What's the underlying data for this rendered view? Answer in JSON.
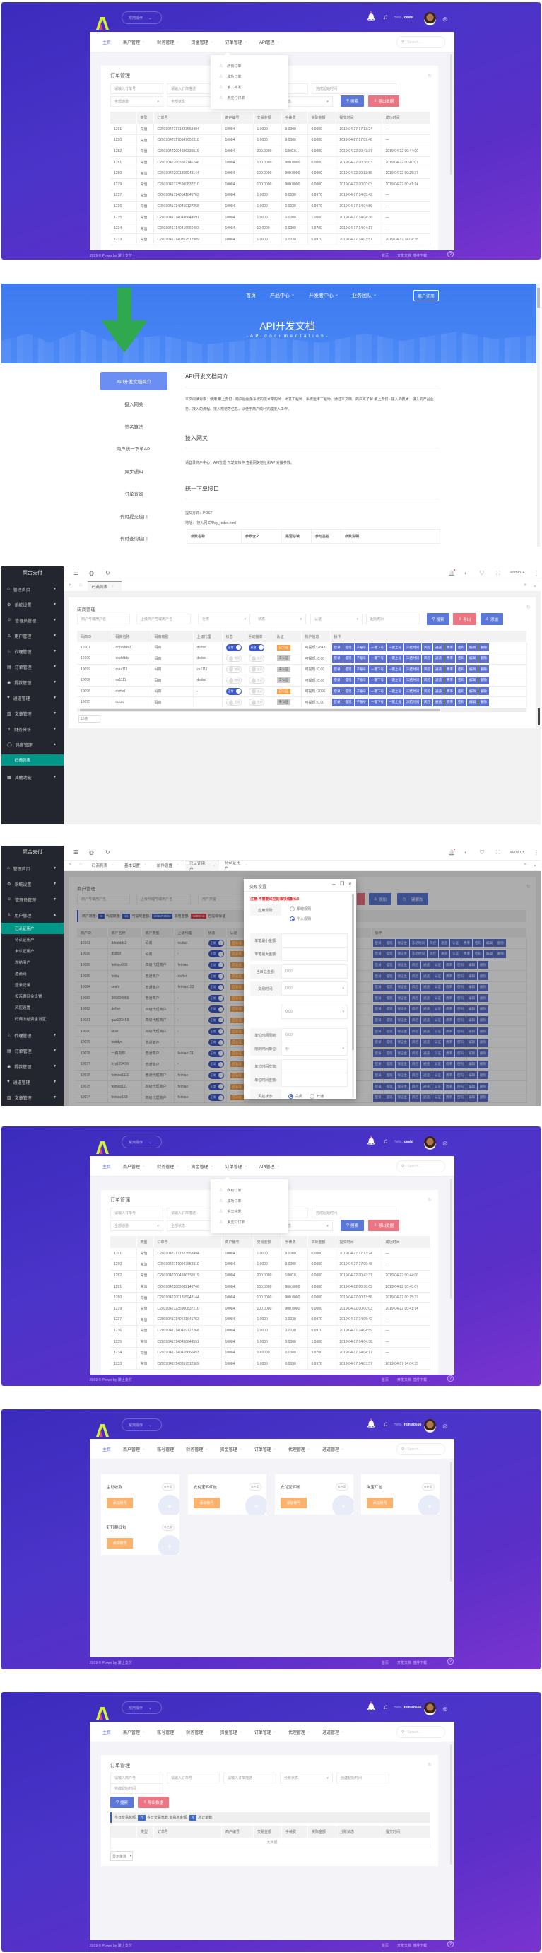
{
  "order_page": {
    "header": {
      "quick_actions": "常用操作",
      "greeting": "Hello,",
      "username": "ceshi"
    },
    "nav": [
      {
        "label": "主页",
        "active": true
      },
      {
        "label": "商户管理",
        "caret": true
      },
      {
        "label": "财务管理",
        "caret": true
      },
      {
        "label": "资金管理",
        "caret": true
      },
      {
        "label": "订单管理",
        "caret": true,
        "open": true
      },
      {
        "label": "API管理",
        "caret": true
      }
    ],
    "search_placeholder": "Search...",
    "dropdown": [
      "所有订单",
      "成功订单",
      "手工补发",
      "未支付订单"
    ],
    "card_title": "订单管理",
    "filters_row1": [
      "请输入订单号",
      "请输入订单描述",
      "",
      "",
      "完成起始时间"
    ],
    "filters_row2": [
      "全部通道",
      "全部状态",
      "",
      "状态"
    ],
    "search_button": "搜索",
    "export_button": "导出数据",
    "columns": [
      "",
      "类型",
      "订单号",
      "商户编号",
      "交易金额",
      "手续费",
      "实际金额",
      "提交时间",
      "成功时间"
    ],
    "rows": [
      [
        "1291",
        "充值",
        "C20190427171323558404",
        "10084",
        "1.0000",
        "9.0000",
        "0.0000",
        "2019-04-27 17:13:24",
        "—"
      ],
      [
        "1290",
        "充值",
        "C20190427170947652310",
        "10084",
        "1.0000",
        "9.0000",
        "0.0000",
        "2019-04-27 17:09:48",
        "—"
      ],
      [
        "1282",
        "充值",
        "C20190422004336335519",
        "10084",
        "200.0000",
        "1800.0...",
        "0.0000",
        "2019-04-22 00:43:37",
        "2019-04-22 00:44:00"
      ],
      [
        "1281",
        "充值",
        "C20190422003602146746",
        "10084",
        "100.0000",
        "900.0000",
        "0.0000",
        "2019-04-22 00:36:03",
        "2019-04-22 00:40:07"
      ],
      [
        "1280",
        "充值",
        "C20190422001355948144",
        "10084",
        "100.0000",
        "900.0000",
        "0.0000",
        "2019-04-22 00:13:56",
        "2019-04-22 00:25:37"
      ],
      [
        "1279",
        "充值",
        "C20190421235900837210",
        "10084",
        "100.0000",
        "900.0000",
        "0.0000",
        "2019-04-22 00:00:03",
        "2019-04-22 00:41:14"
      ],
      [
        "1237",
        "充值",
        "C20190417140541641763",
        "10084",
        "1.0000",
        "0.0030",
        "0.9970",
        "2019-04-17 14:05:42",
        "—"
      ],
      [
        "1236",
        "充值",
        "C20190417140459127268",
        "10084",
        "1.0000",
        "0.0030",
        "0.9970",
        "2019-04-17 14:04:59",
        "—"
      ],
      [
        "1235",
        "充值",
        "C20190417140436644591",
        "10084",
        "1.0000",
        "0.0000",
        "1.0000",
        "2019-04-17 14:04:36",
        "—"
      ],
      [
        "1234",
        "充值",
        "C20190417140416660493",
        "10084",
        "10.0000",
        "0.0300",
        "9.9700",
        "2019-04-17 14:04:17",
        "—"
      ],
      [
        "1233",
        "充值",
        "C20190417140357512909",
        "10084",
        "1.0000",
        "0.0030",
        "0.9970",
        "2019-04-17 14:03:57",
        "2019-04-17 14:04:35"
      ]
    ],
    "footer": {
      "copyright": "2019 © Power by 聚上支付",
      "links": [
        "首页",
        "开发文档",
        "插件下载"
      ]
    }
  },
  "api_docs": {
    "nav": [
      "首页",
      "产品中心",
      "开发者中心",
      "业务团队"
    ],
    "register_button": "商户注册",
    "title": "API开发文档",
    "subtitle": "- A P I   d o c u m e n t a t i o n -",
    "sidebar": [
      "API开发文档简介",
      "接入网关",
      "签名算法",
      "商户统一下单API",
      "异步通知",
      "订单查询",
      "代付提交接口",
      "代付查询接口"
    ],
    "sections": {
      "intro_title": "API开发文档简介",
      "intro_text": "本文阅读对象：使用 聚上支付 · 商户后服务系统的技术架构师、研发工程师、系统运维工程师。通过本文档，商户可了解 聚上支付 · 接入的技术、接入的产品业务、接入的流程、接入规范等信息，以便于商户顺利完成接入工作。",
      "gateway_title": "接入网关",
      "gateway_text": "请登录商户中心，API管理 开发文档中 查看网关地址和API对接参数。",
      "order_title": "统一下单接口",
      "method": "提交方式：POST",
      "address": "地址： 接入网关/Pay_Index.html",
      "param_columns": [
        "参数名称",
        "参数含义",
        "是否必填",
        "参与签名",
        "参数说明"
      ]
    }
  },
  "admin": {
    "brand": "聚合支付",
    "user": "admin",
    "menu": [
      "管理首页",
      "系统设置",
      "管理员管理",
      "用户管理",
      "代理管理",
      "订单管理",
      "提款管理",
      "通道管理",
      "文章管理",
      "财务分析",
      "码商管理",
      "其他功能"
    ],
    "mch_submenu": [
      "码商列表"
    ],
    "user_submenu": [
      "已认证用户",
      "待认证用户",
      "未认证用户",
      "冻结用户",
      "邀请码",
      "登录记录",
      "投诉保证金设置",
      "风控设置",
      "码商冻结资金设置"
    ]
  },
  "merchant_list": {
    "tabs": [
      "码商列表"
    ],
    "card_title": "码商管理",
    "filters": [
      "商户号或用户名",
      "上级商户号或用户名",
      "分类",
      "状态",
      "认证",
      "起始时间"
    ],
    "buttons": {
      "search": "搜索",
      "export": "导出",
      "add": "添加"
    },
    "columns": [
      "码商ID",
      "码商名称",
      "码商级别",
      "上级代理",
      "状态",
      "手动接单",
      "认证",
      "账户信息",
      "操作"
    ],
    "actions": [
      "登录",
      "提现",
      "子账号",
      "一键下号",
      "一键上号",
      "冻结时间",
      "风控",
      "通道",
      "费率",
      "密码",
      "编辑",
      "删除"
    ],
    "rows": [
      {
        "id": "10101",
        "name": "dddddds2",
        "level": "码商",
        "parent": "dsdsd",
        "status": "正常",
        "status_on": true,
        "manual": "开启",
        "manual_on": true,
        "cert": "已认证",
        "verified": true,
        "account": "可提现: 2843"
      },
      {
        "id": "10100",
        "name": "dddddds",
        "level": "码商",
        "parent": "dsdsd",
        "status": "禁用",
        "status_on": false,
        "manual": "关闭",
        "manual_on": false,
        "cert": "未认证",
        "verified": false,
        "account": "可提现: 0.00"
      },
      {
        "id": "10099",
        "name": "mas111",
        "level": "码商",
        "parent": "cs1111",
        "status": "禁用",
        "status_on": false,
        "manual": "关闭",
        "manual_on": false,
        "cert": "未认证",
        "verified": false,
        "account": "可提现: 0.00"
      },
      {
        "id": "10098",
        "name": "cs1111",
        "level": "码商",
        "parent": "dsdsd",
        "status": "禁用",
        "status_on": false,
        "manual": "关闭",
        "manual_on": false,
        "cert": "未认证",
        "verified": false,
        "account": "可提现: 0.00"
      },
      {
        "id": "10096",
        "name": "dsdsd",
        "level": "码商",
        "parent": "-",
        "status": "正常",
        "status_on": true,
        "manual": "关闭",
        "manual_on": false,
        "cert": "已认证",
        "verified": true,
        "account": "可提现: 2096"
      },
      {
        "id": "10095",
        "name": "ccccc",
        "level": "码商",
        "parent": "",
        "status": "禁用",
        "status_on": false,
        "manual": "关闭",
        "manual_on": false,
        "cert": "未认证",
        "verified": false,
        "account": "可提现: 0.00"
      }
    ],
    "page_size": "15条"
  },
  "user_list": {
    "tabs": [
      "码商列表",
      "基本设置",
      "邮件设置",
      "已认证用户",
      "待认证用户"
    ],
    "active_tab": 3,
    "card_title": "商户管理",
    "filters": [
      "商户号或用户名",
      "上级代理号或用户名",
      "用户类型"
    ],
    "buttons": {
      "add": "添加",
      "unfreeze": "一键解冻"
    },
    "stats": [
      {
        "label": "商户数量:",
        "value": "8",
        "color": "#3f5fc9"
      },
      {
        "label": "代理数量:",
        "value": "14",
        "color": "#3f5fc9"
      },
      {
        "label": "可提现金额:",
        "value": "10157.0004",
        "color": "#3f5fc9"
      },
      {
        "label": "冻结金额:",
        "value": "13997.3",
        "color": "#e0424f"
      },
      {
        "label": "已提现保证",
        "value": null
      }
    ],
    "columns": [
      "商户ID",
      "商户名称",
      "商户类型",
      "上级代理",
      "状态",
      "认证",
      "",
      "操作"
    ],
    "status": "正常",
    "cert": "已认证",
    "actions_full": [
      "登录",
      "提现",
      "保证金",
      "冻结时间",
      "风控",
      "通道",
      "认证",
      "费率",
      "密码",
      "编辑",
      "删除"
    ],
    "actions_short": [
      "登录",
      "提现",
      "保证金",
      "风控",
      "通道",
      "认证",
      "费率",
      "密码",
      "编辑",
      "删除"
    ],
    "rows": [
      [
        "10101",
        "dddddds2",
        "码商",
        "dsdsd"
      ],
      [
        "10096",
        "dsdsd",
        "码商",
        "-"
      ],
      [
        "10086",
        "feiniao666",
        "四级代理商户",
        "feiniao"
      ],
      [
        "10085",
        "feidu",
        "普通商户",
        "defter"
      ],
      [
        "10084",
        "ceshi",
        "普通商户",
        "feiniao123"
      ],
      [
        "10083",
        "309600055",
        "普通商户",
        "-"
      ],
      [
        "10082",
        "defter",
        "四级代理商户",
        "-"
      ],
      [
        "10081",
        "qaz123459",
        "四级代理商户",
        "-"
      ],
      [
        "10080",
        "skxx",
        "四级代理商户",
        "-"
      ],
      [
        "10079",
        "testdyc",
        "普通商户",
        "-"
      ],
      [
        "10078",
        "一路向你",
        "普通商户",
        "feiniao111"
      ],
      [
        "10077",
        "hyy123456",
        "普通商户",
        "-"
      ],
      [
        "10076",
        "feiniao1111",
        "普通代理商户",
        "feiniao"
      ],
      [
        "10075",
        "feiniao111",
        "四级代理商户",
        "feiniao"
      ],
      [
        "10074",
        "feiniao123",
        "四级代理商户",
        "feiniao"
      ]
    ],
    "modal": {
      "title": "交易设置",
      "notice": "注意:不需要风控的事项请默认0",
      "rule_label": "应用规则:",
      "rule_options": [
        "系统规则",
        "个人规则"
      ],
      "rule_selected": 1,
      "fields": [
        {
          "label": "单笔最小金额:",
          "value": ""
        },
        {
          "label": "单笔最大金额:",
          "value": ""
        },
        {
          "label": "当日总金额:",
          "value": "0.00"
        },
        {
          "label": "交易时间:",
          "value": "0.00",
          "select": true
        },
        {
          "label": "",
          "value": "0.00",
          "select": true
        },
        {
          "label": "单位时间限制:",
          "value": "0.00"
        },
        {
          "label": "限制时间单位:",
          "value": "秒",
          "select": true
        },
        {
          "label": "单位时间次数:",
          "value": ""
        },
        {
          "label": "单位时间金额:",
          "value": ""
        }
      ],
      "risk_label": "风控状态:",
      "risk_options": [
        "关闭",
        "开通"
      ],
      "risk_selected": 0
    }
  },
  "merchant_home": {
    "header": {
      "quick_actions": "常用操作",
      "greeting": "Hello,",
      "username": "feiniao666"
    },
    "nav": [
      {
        "label": "主页",
        "active": true
      },
      {
        "label": "商户管理",
        "caret": true
      },
      {
        "label": "账号管理"
      },
      {
        "label": "财务管理",
        "caret": true
      },
      {
        "label": "资金管理",
        "caret": true
      },
      {
        "label": "订单管理",
        "caret": true
      },
      {
        "label": "代理管理",
        "caret": true
      },
      {
        "label": "通道管理",
        "caret": true
      }
    ],
    "search_placeholder": "Search...",
    "channels": [
      {
        "title": "主动收款",
        "tag": "启用",
        "button": "添加账号"
      },
      {
        "title": "支付宝转红包",
        "tag": "启用",
        "button": "添加账号"
      },
      {
        "title": "支付宝转账",
        "tag": "启用",
        "button": "添加账号"
      },
      {
        "title": "淘宝红包",
        "tag": "启用",
        "button": "添加账号"
      },
      {
        "title": "钉钉群红包",
        "tag": "启用",
        "button": "添加账号"
      }
    ],
    "footer": {
      "copyright": "2019 © Power by 聚上支付",
      "links": [
        "首页",
        "开发文档",
        "插件下载"
      ]
    }
  },
  "merchant_orders": {
    "header": {
      "quick_actions": "常用操作",
      "greeting": "Hello,",
      "username": "feiniao666"
    },
    "nav": [
      {
        "label": "主页",
        "active": true
      },
      {
        "label": "商户管理",
        "caret": true
      },
      {
        "label": "账号管理"
      },
      {
        "label": "财务管理",
        "caret": true
      },
      {
        "label": "资金管理",
        "caret": true
      },
      {
        "label": "订单管理",
        "caret": true
      },
      {
        "label": "代理管理",
        "caret": true
      },
      {
        "label": "通道管理",
        "caret": true
      }
    ],
    "search_placeholder": "Search...",
    "card_title": "订单管理",
    "filters": [
      "请输入商户号",
      "请输入订单号",
      "请输入订单描述",
      "分账状态",
      "创建起始时间",
      "完成起始时间"
    ],
    "search_button": "搜索",
    "export_button": "导出数据",
    "stats": [
      {
        "label": "今日交易总额:",
        "value": "元"
      },
      {
        "label": "今日交易笔数:",
        "value": null
      },
      {
        "label": "交易总金额:",
        "value": "元"
      },
      {
        "label": "总订单数:",
        "value": null
      }
    ],
    "columns": [
      "",
      "类型",
      "订单号",
      "商户编号",
      "交易金额",
      "手续费",
      "实际金额",
      "分账状态",
      "提交时间"
    ],
    "empty_text": "无数据",
    "page_size": "显示条数",
    "footer": {
      "copyright": "2019 © Power by 聚上支付",
      "links": [
        "首页",
        "开发文档",
        "插件下载"
      ]
    }
  },
  "colors": {
    "brand_purple": "#4b34c9",
    "primary_blue": "#5b78d6",
    "danger_red": "#ec7584",
    "sidebar_dark": "#23262e",
    "sidebar_active": "#009688",
    "api_blue": "#3f7ef2",
    "tag_orange": "#f7a04a"
  }
}
